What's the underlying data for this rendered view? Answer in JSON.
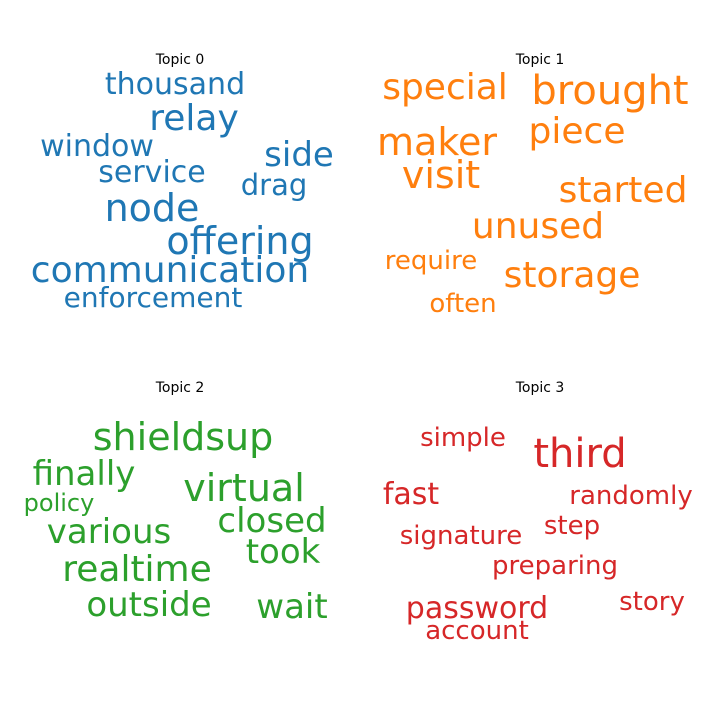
{
  "chart_data": [
    {
      "type": "wordcloud",
      "title": "Topic 0",
      "color": "#1f77b4",
      "words": [
        {
          "text": "thousand",
          "weight": 30
        },
        {
          "text": "relay",
          "weight": 36
        },
        {
          "text": "window",
          "weight": 30
        },
        {
          "text": "side",
          "weight": 34
        },
        {
          "text": "service",
          "weight": 30
        },
        {
          "text": "drag",
          "weight": 29
        },
        {
          "text": "node",
          "weight": 38
        },
        {
          "text": "offering",
          "weight": 38
        },
        {
          "text": "communication",
          "weight": 36
        },
        {
          "text": "enforcement",
          "weight": 28
        }
      ]
    },
    {
      "type": "wordcloud",
      "title": "Topic 1",
      "color": "#ff7f0e",
      "words": [
        {
          "text": "special",
          "weight": 36
        },
        {
          "text": "brought",
          "weight": 40
        },
        {
          "text": "maker",
          "weight": 38
        },
        {
          "text": "piece",
          "weight": 36
        },
        {
          "text": "visit",
          "weight": 38
        },
        {
          "text": "started",
          "weight": 36
        },
        {
          "text": "unused",
          "weight": 36
        },
        {
          "text": "require",
          "weight": 26
        },
        {
          "text": "storage",
          "weight": 36
        },
        {
          "text": "often",
          "weight": 26
        }
      ]
    },
    {
      "type": "wordcloud",
      "title": "Topic 2",
      "color": "#2ca02c",
      "words": [
        {
          "text": "shieldsup",
          "weight": 38
        },
        {
          "text": "finally",
          "weight": 34
        },
        {
          "text": "virtual",
          "weight": 38
        },
        {
          "text": "policy",
          "weight": 24
        },
        {
          "text": "closed",
          "weight": 34
        },
        {
          "text": "various",
          "weight": 34
        },
        {
          "text": "took",
          "weight": 34
        },
        {
          "text": "realtime",
          "weight": 36
        },
        {
          "text": "outside",
          "weight": 34
        },
        {
          "text": "wait",
          "weight": 34
        }
      ]
    },
    {
      "type": "wordcloud",
      "title": "Topic 3",
      "color": "#d62728",
      "words": [
        {
          "text": "simple",
          "weight": 26
        },
        {
          "text": "third",
          "weight": 40
        },
        {
          "text": "fast",
          "weight": 30
        },
        {
          "text": "randomly",
          "weight": 26
        },
        {
          "text": "signature",
          "weight": 26
        },
        {
          "text": "step",
          "weight": 26
        },
        {
          "text": "preparing",
          "weight": 26
        },
        {
          "text": "password",
          "weight": 30
        },
        {
          "text": "story",
          "weight": 26
        },
        {
          "text": "account",
          "weight": 26
        }
      ]
    }
  ]
}
